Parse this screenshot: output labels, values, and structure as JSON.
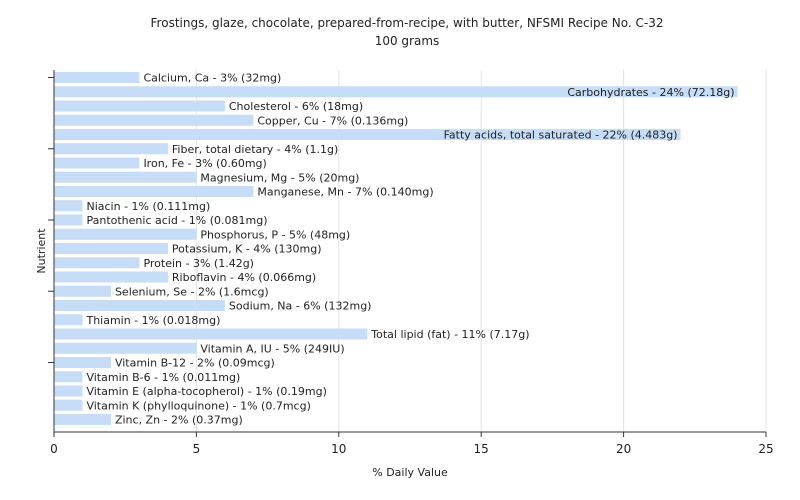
{
  "chart_data": {
    "type": "bar",
    "orientation": "horizontal",
    "title": "Frostings, glaze, chocolate, prepared-from-recipe, with butter, NFSMI Recipe No. C-32",
    "subtitle": "100 grams",
    "xlabel": "% Daily Value",
    "ylabel": "Nutrient",
    "xlim": [
      0,
      25
    ],
    "xticks": [
      "0",
      "5",
      "10",
      "15",
      "20",
      "25"
    ],
    "grid": true,
    "bar_color": "#c6dcf7",
    "categories": [
      "Calcium, Ca",
      "Carbohydrates",
      "Cholesterol",
      "Copper, Cu",
      "Fatty acids, total saturated",
      "Fiber, total dietary",
      "Iron, Fe",
      "Magnesium, Mg",
      "Manganese, Mn",
      "Niacin",
      "Pantothenic acid",
      "Phosphorus, P",
      "Potassium, K",
      "Protein",
      "Riboflavin",
      "Selenium, Se",
      "Sodium, Na",
      "Thiamin",
      "Total lipid (fat)",
      "Vitamin A, IU",
      "Vitamin B-12",
      "Vitamin B-6",
      "Vitamin E (alpha-tocopherol)",
      "Vitamin K (phylloquinone)",
      "Zinc, Zn"
    ],
    "values": [
      3,
      24,
      6,
      7,
      22,
      4,
      3,
      5,
      7,
      1,
      1,
      5,
      4,
      3,
      4,
      2,
      6,
      1,
      11,
      5,
      2,
      1,
      1,
      1,
      2
    ],
    "labels": [
      "Calcium, Ca - 3% (32mg)",
      "Carbohydrates - 24% (72.18g)",
      "Cholesterol - 6% (18mg)",
      "Copper, Cu - 7% (0.136mg)",
      "Fatty acids, total saturated - 22% (4.483g)",
      "Fiber, total dietary - 4% (1.1g)",
      "Iron, Fe - 3% (0.60mg)",
      "Magnesium, Mg - 5% (20mg)",
      "Manganese, Mn - 7% (0.140mg)",
      "Niacin - 1% (0.111mg)",
      "Pantothenic acid - 1% (0.081mg)",
      "Phosphorus, P - 5% (48mg)",
      "Potassium, K - 4% (130mg)",
      "Protein - 3% (1.42g)",
      "Riboflavin - 4% (0.066mg)",
      "Selenium, Se - 2% (1.6mcg)",
      "Sodium, Na - 6% (132mg)",
      "Thiamin - 1% (0.018mg)",
      "Total lipid (fat) - 11% (7.17g)",
      "Vitamin A, IU - 5% (249IU)",
      "Vitamin B-12 - 2% (0.09mcg)",
      "Vitamin B-6 - 1% (0.011mg)",
      "Vitamin E (alpha-tocopherol) - 1% (0.19mg)",
      "Vitamin K (phylloquinone) - 1% (0.7mcg)",
      "Zinc, Zn - 2% (0.37mg)"
    ]
  }
}
